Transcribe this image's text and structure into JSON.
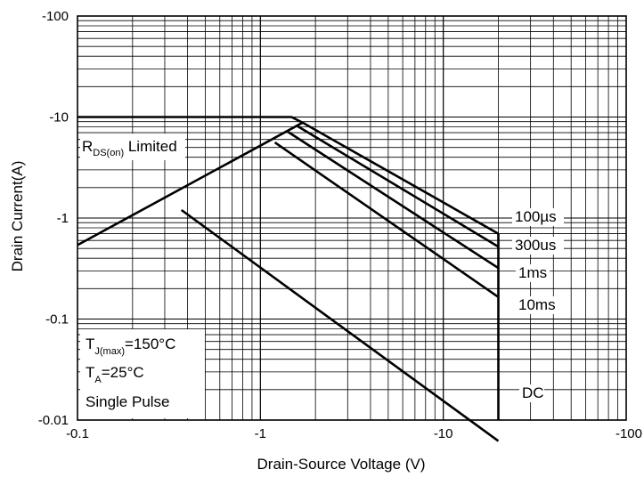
{
  "chart_data": {
    "type": "line",
    "title": "",
    "xlabel": "Drain-Source Voltage (V)",
    "ylabel": "Drain Current(A)",
    "x_scale": "log",
    "y_scale": "log",
    "xlim": [
      -0.1,
      -100
    ],
    "ylim": [
      -0.01,
      -100
    ],
    "x_tick_labels": [
      "-0.1",
      "-1",
      "-10",
      "-100"
    ],
    "y_tick_labels": [
      "-0.01",
      "-0.1",
      "-1",
      "-10",
      "-100"
    ],
    "grid": true,
    "series": [
      {
        "name": "100µs",
        "points": [
          [
            -0.1,
            -10
          ],
          [
            -1.48,
            -10
          ],
          [
            -1.7,
            -8.8
          ],
          [
            -20,
            -0.7
          ]
        ]
      },
      {
        "name": "300us",
        "points": [
          [
            -1.6,
            -8.1
          ],
          [
            -20,
            -0.52
          ]
        ]
      },
      {
        "name": "1ms",
        "points": [
          [
            -1.42,
            -7.1
          ],
          [
            -20,
            -0.32
          ]
        ]
      },
      {
        "name": "10ms",
        "points": [
          [
            -1.2,
            -5.6
          ],
          [
            -20,
            -0.165
          ]
        ]
      },
      {
        "name": "DC",
        "points": [
          [
            -0.37,
            -1.2
          ],
          [
            -20,
            -0.0062
          ]
        ]
      },
      {
        "name": "",
        "points": [
          [
            -0.1,
            -0.54
          ],
          [
            -1.7,
            -8.8
          ]
        ]
      },
      {
        "name": "",
        "points": [
          [
            -20,
            -0.7
          ],
          [
            -20,
            -0.01
          ]
        ]
      }
    ],
    "annotations": {
      "rds": {
        "main": "R",
        "sub": "DS(on)",
        "rest": " Limited"
      },
      "tj": {
        "main": "T",
        "sub": "J(max)",
        "rest": "=150°C"
      },
      "ta": {
        "main": "T",
        "sub": "A",
        "rest": "=25°C"
      },
      "pulse": "Single Pulse"
    }
  }
}
